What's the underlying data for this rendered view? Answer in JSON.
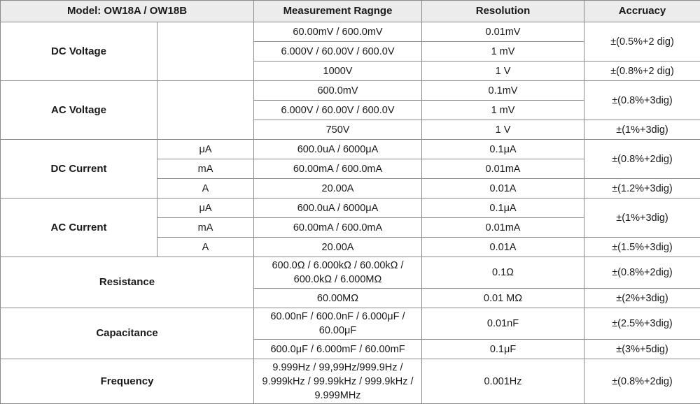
{
  "header": {
    "model": "Model: OW18A / OW18B",
    "range": "Measurement Ragnge",
    "resolution": "Resolution",
    "accuracy": "Accruacy"
  },
  "dc_voltage": {
    "label": "DC Voltage",
    "rows": [
      {
        "range": "60.00mV / 600.0mV",
        "resolution": "0.01mV"
      },
      {
        "range": "6.000V / 60.00V / 600.0V",
        "resolution": "1 mV"
      },
      {
        "range": "1000V",
        "resolution": "1 V"
      }
    ],
    "accuracy": [
      "±(0.5%+2 dig)",
      "±(0.8%+2 dig)"
    ]
  },
  "ac_voltage": {
    "label": "AC Voltage",
    "rows": [
      {
        "range": "600.0mV",
        "resolution": "0.1mV"
      },
      {
        "range": "6.000V / 60.00V / 600.0V",
        "resolution": "1 mV"
      },
      {
        "range": "750V",
        "resolution": "1 V"
      }
    ],
    "accuracy": [
      "±(0.8%+3dig)",
      "±(1%+3dig)"
    ]
  },
  "dc_current": {
    "label": "DC Current",
    "rows": [
      {
        "unit": "μA",
        "range": "600.0uA / 6000μA",
        "resolution": "0.1μA"
      },
      {
        "unit": "mA",
        "range": "60.00mA / 600.0mA",
        "resolution": "0.01mA"
      },
      {
        "unit": "A",
        "range": "20.00A",
        "resolution": "0.01A"
      }
    ],
    "accuracy": [
      "±(0.8%+2dig)",
      "±(1.2%+3dig)"
    ]
  },
  "ac_current": {
    "label": "AC Current",
    "rows": [
      {
        "unit": "μA",
        "range": "600.0uA / 6000μA",
        "resolution": "0.1μA"
      },
      {
        "unit": "mA",
        "range": "60.00mA / 600.0mA",
        "resolution": "0.01mA"
      },
      {
        "unit": "A",
        "range": "20.00A",
        "resolution": "0.01A"
      }
    ],
    "accuracy": [
      "±(1%+3dig)",
      "±(1.5%+3dig)"
    ]
  },
  "resistance": {
    "label": "Resistance",
    "rows": [
      {
        "range": "600.0Ω / 6.000kΩ / 60.00kΩ / 600.0kΩ / 6.000MΩ",
        "resolution": "0.1Ω",
        "accuracy": "±(0.8%+2dig)"
      },
      {
        "range": "60.00MΩ",
        "resolution": "0.01 MΩ",
        "accuracy": "±(2%+3dig)"
      }
    ]
  },
  "capacitance": {
    "label": "Capacitance",
    "rows": [
      {
        "range": "60.00nF / 600.0nF / 6.000μF / 60.00μF",
        "resolution": "0.01nF",
        "accuracy": "±(2.5%+3dig)"
      },
      {
        "range": "600.0μF / 6.000mF / 60.00mF",
        "resolution": "0.1μF",
        "accuracy": "±(3%+5dig)"
      }
    ]
  },
  "frequency": {
    "label": "Frequency",
    "range": "9.999Hz / 99,99Hz/999.9Hz / 9.999kHz / 99.99kHz / 999.9kHz / 9.999MHz",
    "resolution": "0.001Hz",
    "accuracy": "±(0.8%+2dig)"
  }
}
